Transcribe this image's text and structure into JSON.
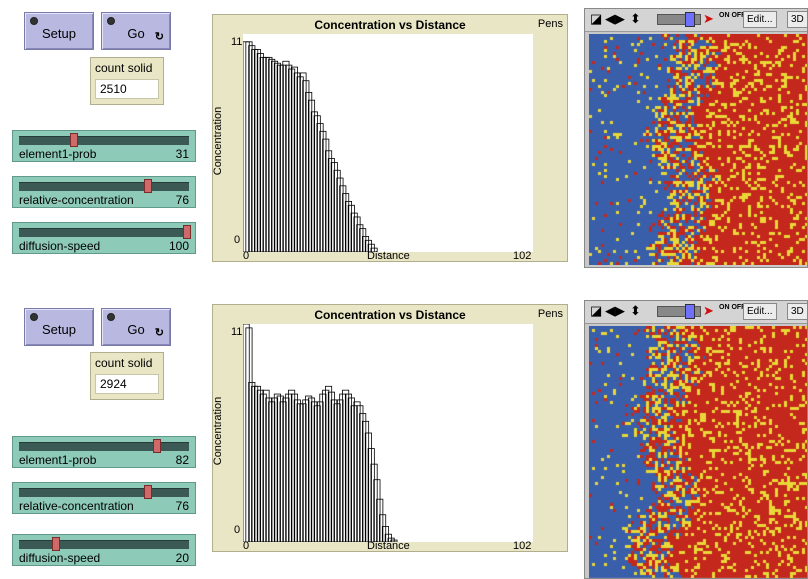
{
  "panels": [
    {
      "buttons": {
        "setup": "Setup",
        "go": "Go",
        "go_forever_icon": "↻"
      },
      "monitor": {
        "title": "count solid",
        "value": "2510"
      },
      "sliders": [
        {
          "name": "element1-prob",
          "value": "31",
          "level": 0.31
        },
        {
          "name": "relative-concentration",
          "value": "76",
          "level": 0.76
        },
        {
          "name": "diffusion-speed",
          "value": "100",
          "level": 1.0
        }
      ],
      "plot": {
        "title": "Concentration vs Distance",
        "pens_label": "Pens",
        "ylabel": "Concentration",
        "xlabel": "Distance",
        "ymin": "0",
        "ymax": "112",
        "xmin": "0",
        "xmax": "102"
      },
      "view": {
        "toolbar": {
          "edit": "Edit...",
          "three_d": "3D",
          "onoff": "ON OFF"
        },
        "boundary_fraction": 0.43,
        "colors": {
          "blue": "#3a5faa",
          "red": "#c4281c",
          "yellow": "#e8d838"
        }
      }
    },
    {
      "buttons": {
        "setup": "Setup",
        "go": "Go",
        "go_forever_icon": "↻"
      },
      "monitor": {
        "title": "count solid",
        "value": "2924"
      },
      "sliders": [
        {
          "name": "element1-prob",
          "value": "82",
          "level": 0.82
        },
        {
          "name": "relative-concentration",
          "value": "76",
          "level": 0.76
        },
        {
          "name": "diffusion-speed",
          "value": "20",
          "level": 0.2
        }
      ],
      "plot": {
        "title": "Concentration vs Distance",
        "pens_label": "Pens",
        "ylabel": "Concentration",
        "xlabel": "Distance",
        "ymin": "0",
        "ymax": "112",
        "xmin": "0",
        "xmax": "102"
      },
      "view": {
        "toolbar": {
          "edit": "Edit...",
          "three_d": "3D",
          "onoff": "ON OFF"
        },
        "boundary_fraction": 0.35,
        "colors": {
          "blue": "#3a5faa",
          "red": "#c4281c",
          "yellow": "#e8d838"
        }
      }
    }
  ],
  "chart_data": [
    {
      "type": "bar",
      "title": "Concentration vs Distance",
      "xlabel": "Distance",
      "ylabel": "Concentration",
      "xlim": [
        0,
        102
      ],
      "ylim": [
        0,
        112
      ],
      "x": [
        0,
        1,
        2,
        3,
        4,
        5,
        6,
        7,
        8,
        9,
        10,
        11,
        12,
        13,
        14,
        15,
        16,
        17,
        18,
        19,
        20,
        21,
        22,
        23,
        24,
        25,
        26,
        27,
        28,
        29,
        30,
        31,
        32,
        33,
        34,
        35,
        36,
        37,
        38,
        39,
        40,
        41,
        42,
        43,
        44,
        45
      ],
      "values": [
        108,
        108,
        106,
        104,
        104,
        102,
        100,
        100,
        100,
        99,
        98,
        97,
        96,
        96,
        98,
        96,
        94,
        95,
        92,
        90,
        92,
        88,
        82,
        78,
        72,
        70,
        66,
        62,
        58,
        52,
        48,
        46,
        42,
        38,
        34,
        30,
        26,
        24,
        20,
        18,
        14,
        12,
        8,
        6,
        4,
        2
      ]
    },
    {
      "type": "bar",
      "title": "Concentration vs Distance",
      "xlabel": "Distance",
      "ylabel": "Concentration",
      "xlim": [
        0,
        102
      ],
      "ylim": [
        0,
        112
      ],
      "x": [
        0,
        1,
        2,
        3,
        4,
        5,
        6,
        7,
        8,
        9,
        10,
        11,
        12,
        13,
        14,
        15,
        16,
        17,
        18,
        19,
        20,
        21,
        22,
        23,
        24,
        25,
        26,
        27,
        28,
        29,
        30,
        31,
        32,
        33,
        34,
        35,
        36,
        37,
        38,
        39,
        40,
        41,
        42,
        43,
        44,
        45,
        46,
        47,
        48,
        49,
        50,
        51,
        52
      ],
      "values": [
        112,
        110,
        82,
        80,
        80,
        78,
        76,
        78,
        74,
        72,
        74,
        76,
        75,
        72,
        74,
        76,
        78,
        76,
        73,
        71,
        71,
        73,
        75,
        74,
        72,
        70,
        72,
        76,
        78,
        80,
        77,
        73,
        71,
        73,
        76,
        78,
        76,
        74,
        70,
        72,
        70,
        66,
        62,
        56,
        48,
        40,
        32,
        22,
        14,
        8,
        4,
        2,
        1
      ]
    }
  ]
}
